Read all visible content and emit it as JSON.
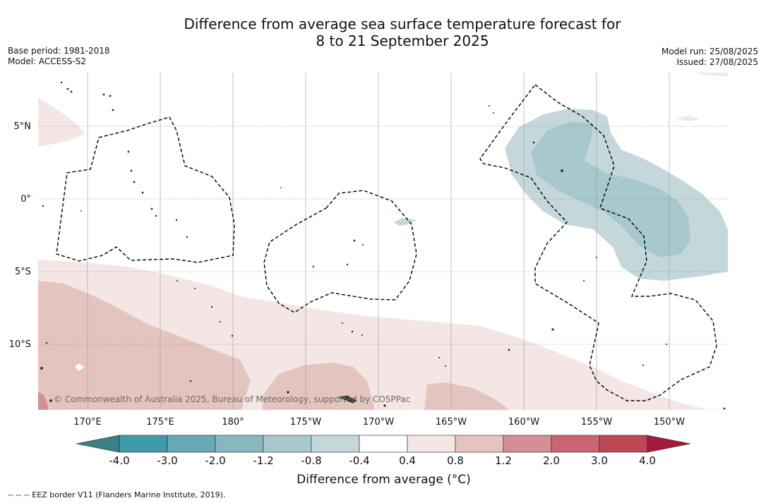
{
  "title": {
    "line1": "Difference from average sea surface temperature forecast for",
    "line2": "8 to 21 September 2025"
  },
  "meta_left": {
    "base_period": "Base period: 1981-2018",
    "model": "Model: ACCESS-S2"
  },
  "meta_right": {
    "model_run": "Model run: 25/08/2025",
    "issued": "Issued: 27/08/2025"
  },
  "map": {
    "lon_labels": [
      "170°E",
      "175°E",
      "180°",
      "175°W",
      "170°W",
      "165°W",
      "160°W",
      "155°W",
      "150°W"
    ],
    "lat_labels": [
      "5°N",
      "0°",
      "5°S",
      "10°S"
    ],
    "copyright": "© Commonwealth of Australia 2025, Bureau of Meteorology, supported by COSPPac"
  },
  "colorbar": {
    "title": "Difference from average (°C)",
    "labels": [
      "-4.0",
      "-3.0",
      "-2.0",
      "-1.2",
      "-0.8",
      "-0.4",
      "0.4",
      "0.8",
      "1.2",
      "2.0",
      "3.0",
      "4.0"
    ],
    "colors": [
      "#3f9aa9",
      "#68a9b6",
      "#88b7bf",
      "#a7c8cc",
      "#c4d8db",
      "#ffffff",
      "#f4e6e4",
      "#e4c4bf",
      "#d48e94",
      "#c86571",
      "#bd4755"
    ],
    "low_extend_color": "#3c7f84",
    "high_extend_color": "#a5193a"
  },
  "footnote": "-- -- -- EEZ border V11 (Flanders Marine Institute, 2019)."
}
